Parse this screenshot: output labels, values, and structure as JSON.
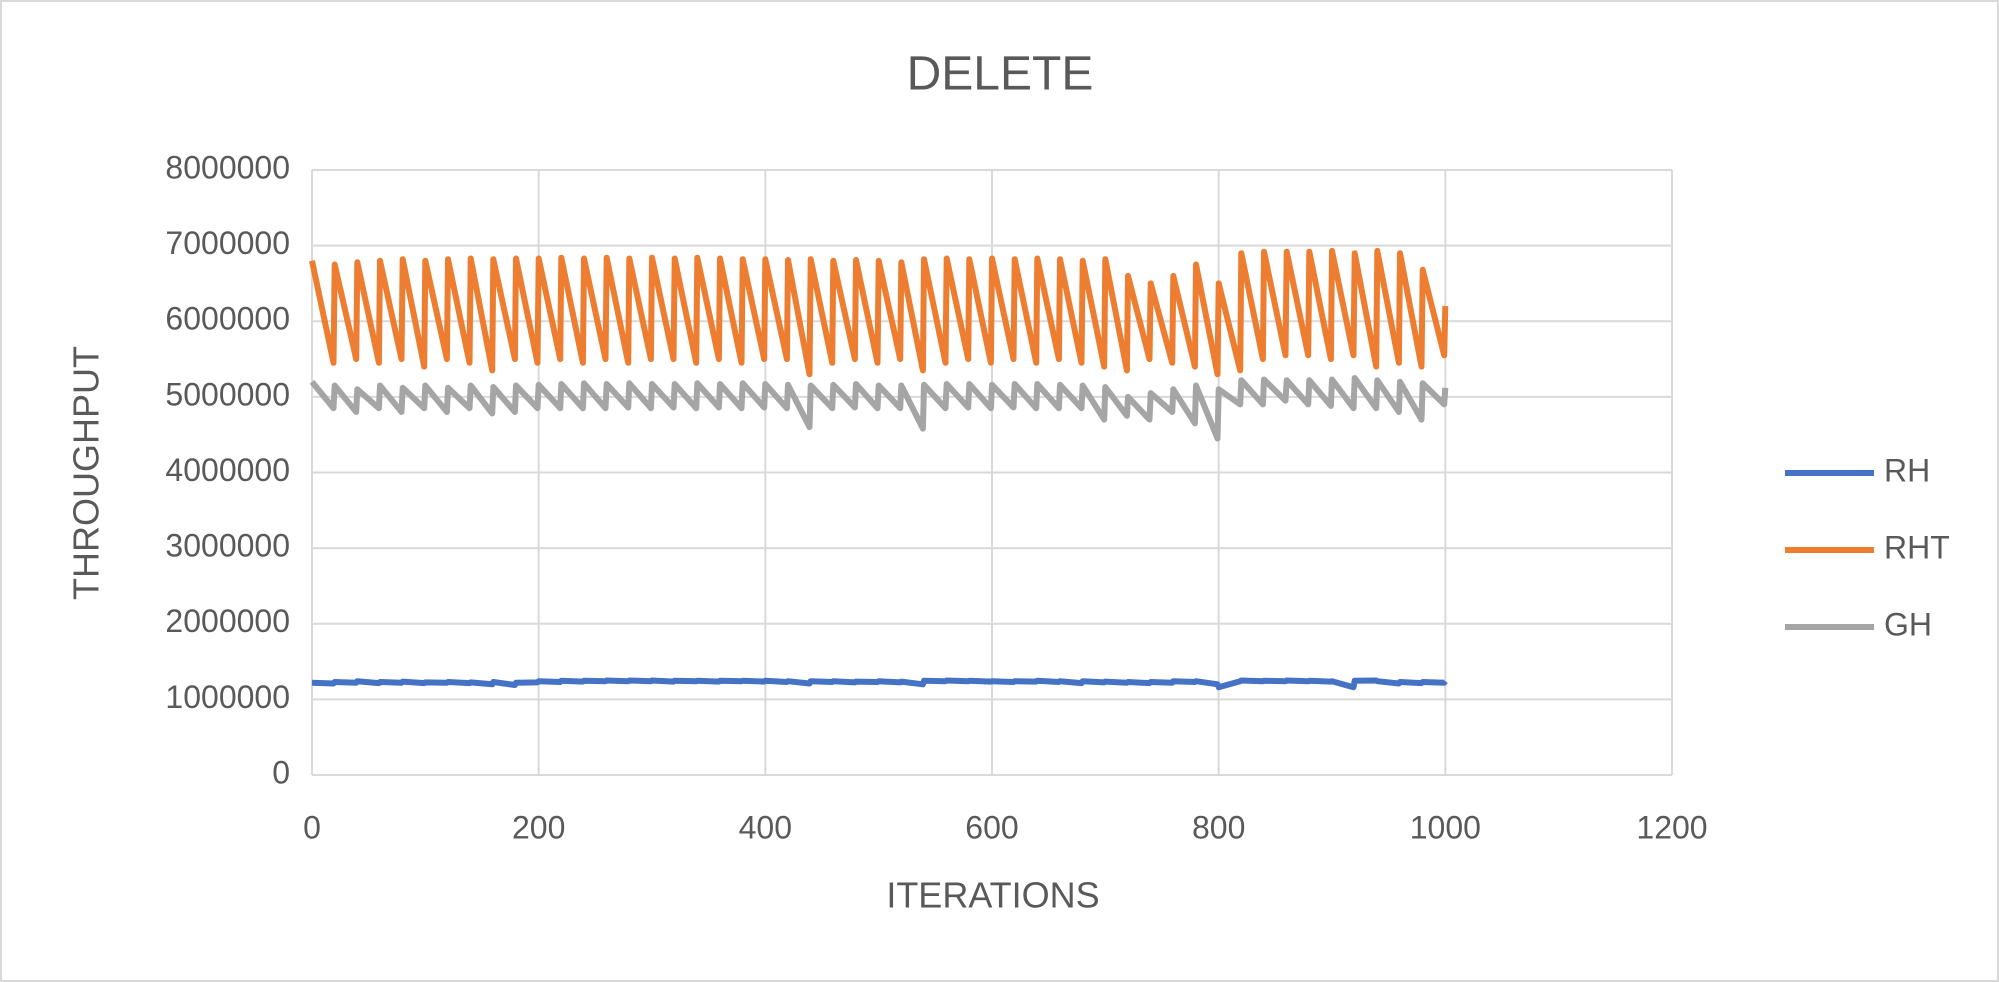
{
  "chart_data": {
    "type": "line",
    "title": "DELETE",
    "x_label": "ITERATIONS",
    "y_label": "THROUGHPUT",
    "x": [
      0,
      19,
      20,
      39,
      40,
      59,
      60,
      79,
      80,
      99,
      100,
      119,
      120,
      139,
      140,
      159,
      160,
      179,
      180,
      199,
      200,
      219,
      220,
      239,
      240,
      259,
      260,
      279,
      280,
      299,
      300,
      319,
      320,
      339,
      340,
      359,
      360,
      379,
      380,
      399,
      400,
      419,
      420,
      439,
      440,
      459,
      460,
      479,
      480,
      499,
      500,
      519,
      520,
      539,
      540,
      559,
      560,
      579,
      580,
      599,
      600,
      619,
      620,
      639,
      640,
      659,
      660,
      679,
      680,
      699,
      700,
      719,
      720,
      739,
      740,
      759,
      760,
      779,
      780,
      799,
      800,
      819,
      820,
      839,
      840,
      859,
      860,
      879,
      880,
      899,
      900,
      919,
      920,
      939,
      940,
      959,
      960,
      979,
      980,
      999,
      1000
    ],
    "series": [
      {
        "name": "RH",
        "color": "#4472c4",
        "values": [
          1220000,
          1210000,
          1230000,
          1220000,
          1240000,
          1215000,
          1230000,
          1220000,
          1235000,
          1215000,
          1225000,
          1220000,
          1230000,
          1215000,
          1225000,
          1200000,
          1230000,
          1190000,
          1220000,
          1225000,
          1240000,
          1230000,
          1245000,
          1235000,
          1245000,
          1240000,
          1250000,
          1240000,
          1250000,
          1240000,
          1250000,
          1235000,
          1245000,
          1240000,
          1245000,
          1235000,
          1245000,
          1240000,
          1245000,
          1235000,
          1245000,
          1230000,
          1240000,
          1210000,
          1240000,
          1230000,
          1240000,
          1225000,
          1235000,
          1230000,
          1240000,
          1225000,
          1235000,
          1200000,
          1245000,
          1240000,
          1250000,
          1240000,
          1245000,
          1235000,
          1240000,
          1230000,
          1240000,
          1235000,
          1245000,
          1230000,
          1240000,
          1215000,
          1240000,
          1225000,
          1235000,
          1220000,
          1230000,
          1215000,
          1230000,
          1220000,
          1240000,
          1230000,
          1240000,
          1200000,
          1160000,
          1240000,
          1250000,
          1240000,
          1245000,
          1240000,
          1250000,
          1240000,
          1245000,
          1235000,
          1240000,
          1160000,
          1245000,
          1250000,
          1240000,
          1210000,
          1230000,
          1215000,
          1230000,
          1220000,
          1240000
        ]
      },
      {
        "name": "RHT",
        "color": "#ed7d31",
        "values": [
          6800000,
          5450000,
          6750000,
          5500000,
          6780000,
          5450000,
          6800000,
          5500000,
          6820000,
          5400000,
          6800000,
          5500000,
          6820000,
          5450000,
          6830000,
          5350000,
          6820000,
          5500000,
          6830000,
          5450000,
          6830000,
          5500000,
          6840000,
          5450000,
          6830000,
          5500000,
          6840000,
          5450000,
          6830000,
          5500000,
          6840000,
          5500000,
          6830000,
          5450000,
          6840000,
          5500000,
          6830000,
          5450000,
          6820000,
          5500000,
          6820000,
          5500000,
          6810000,
          5300000,
          6820000,
          5450000,
          6800000,
          5500000,
          6810000,
          5450000,
          6800000,
          5500000,
          6780000,
          5350000,
          6820000,
          5450000,
          6830000,
          5500000,
          6820000,
          5450000,
          6830000,
          5500000,
          6820000,
          5450000,
          6830000,
          5500000,
          6820000,
          5450000,
          6800000,
          5400000,
          6820000,
          5350000,
          6600000,
          5500000,
          6500000,
          5450000,
          6600000,
          5400000,
          6750000,
          5300000,
          6500000,
          5350000,
          6900000,
          5500000,
          6920000,
          5550000,
          6920000,
          5550000,
          6920000,
          5500000,
          6930000,
          5550000,
          6900000,
          5400000,
          6930000,
          5450000,
          6900000,
          5400000,
          6680000,
          5550000,
          6200000
        ]
      },
      {
        "name": "GH",
        "color": "#a5a5a5",
        "values": [
          5200000,
          4850000,
          5150000,
          4800000,
          5100000,
          4850000,
          5150000,
          4800000,
          5120000,
          4850000,
          5150000,
          4800000,
          5120000,
          4850000,
          5150000,
          4780000,
          5130000,
          4800000,
          5150000,
          4850000,
          5160000,
          4850000,
          5170000,
          4850000,
          5180000,
          4850000,
          5170000,
          4860000,
          5180000,
          4850000,
          5170000,
          4860000,
          5170000,
          4850000,
          5180000,
          4860000,
          5170000,
          4850000,
          5180000,
          4860000,
          5170000,
          4850000,
          5160000,
          4600000,
          5150000,
          4850000,
          5160000,
          4860000,
          5170000,
          4850000,
          5150000,
          4850000,
          5150000,
          4580000,
          5160000,
          4850000,
          5170000,
          4860000,
          5170000,
          4850000,
          5160000,
          4860000,
          5170000,
          4850000,
          5170000,
          4850000,
          5160000,
          4850000,
          5150000,
          4700000,
          5130000,
          4750000,
          5000000,
          4700000,
          5050000,
          4800000,
          5100000,
          4650000,
          5150000,
          4450000,
          5100000,
          4900000,
          5220000,
          4900000,
          5230000,
          4950000,
          5220000,
          4900000,
          5220000,
          4880000,
          5230000,
          4850000,
          5250000,
          4850000,
          5220000,
          4800000,
          5200000,
          4700000,
          5180000,
          4900000,
          5120000
        ]
      }
    ],
    "xlim": [
      0,
      1200
    ],
    "xticks": [
      0,
      200,
      400,
      600,
      800,
      1000,
      1200
    ],
    "ylim": [
      0,
      8000000
    ],
    "yticks": [
      0,
      1000000,
      2000000,
      3000000,
      4000000,
      5000000,
      6000000,
      7000000,
      8000000
    ],
    "grid": true,
    "legend": "right"
  }
}
